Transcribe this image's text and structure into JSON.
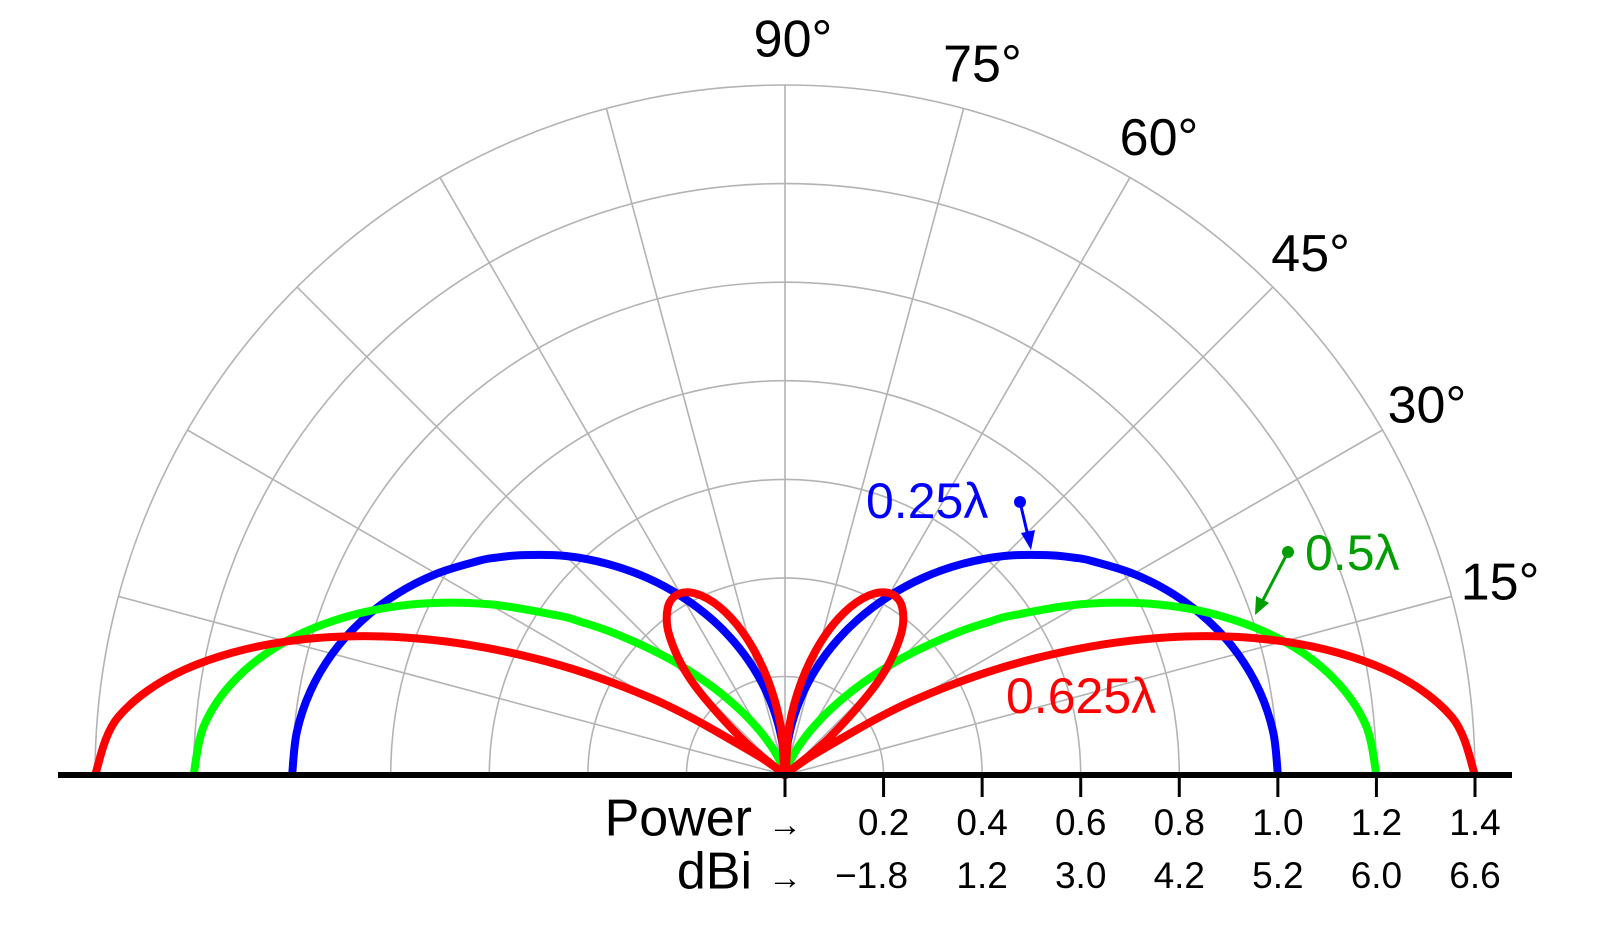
{
  "chart_data": {
    "type": "polar",
    "x": [
      0,
      5,
      10,
      15,
      20,
      25,
      30,
      35,
      36.87,
      40,
      45,
      50,
      55,
      60,
      65,
      70,
      75,
      80,
      85,
      90,
      95,
      100,
      105,
      110,
      115,
      120,
      125,
      130,
      135,
      140,
      143.13,
      145,
      150,
      155,
      160,
      165,
      170,
      175,
      180
    ],
    "series": [
      {
        "name": "0.25λ",
        "color": "#0000ff",
        "label_color": "#0000ff",
        "values": [
          1,
          0.9944,
          0.9779,
          0.9509,
          0.9143,
          0.869,
          0.8165,
          0.7578,
          0.7347,
          0.6941,
          0.6285,
          0.559,
          0.4885,
          0.4174,
          0.3469,
          0.2765,
          0.2066,
          0.1375,
          0.0688,
          0,
          0.0688,
          0.1375,
          0.2066,
          0.2765,
          0.3469,
          0.4174,
          0.4885,
          0.559,
          0.6285,
          0.6941,
          0.7347,
          0.7578,
          0.8165,
          0.869,
          0.9143,
          0.9509,
          0.9779,
          0.9944,
          1
        ]
      },
      {
        "name": "0.5λ",
        "color": "#00ff00",
        "label_color": "#009e00",
        "values": [
          1.2,
          1.1822,
          1.1301,
          1.0481,
          0.9423,
          0.8214,
          0.6928,
          0.5647,
          0.5182,
          0.4434,
          0.3346,
          0.2406,
          0.1653,
          0.106,
          0.061,
          0.0311,
          0.0108,
          0.0039,
          0.0005,
          0,
          0.0005,
          0.0039,
          0.0108,
          0.0311,
          0.061,
          0.106,
          0.1653,
          0.2406,
          0.3346,
          0.4434,
          0.5182,
          0.5647,
          0.6928,
          0.8214,
          0.9423,
          1.0481,
          1.1301,
          1.1822,
          1.2
        ]
      },
      {
        "name": "0.625λ",
        "color": "#ff0000",
        "label_color": "#ff0000",
        "values": [
          1.4,
          1.3576,
          1.2354,
          1.0472,
          0.8143,
          0.5596,
          0.3072,
          0.0774,
          0,
          0.1162,
          0.2644,
          0.3623,
          0.4147,
          0.4256,
          0.4017,
          0.3505,
          0.2786,
          0.1926,
          0.1001,
          0,
          0.1001,
          0.1926,
          0.2786,
          0.3505,
          0.4017,
          0.4256,
          0.4147,
          0.3623,
          0.2644,
          0.1162,
          0,
          0.0774,
          0.3072,
          0.5596,
          0.8143,
          1.0472,
          1.2354,
          1.3576,
          1.4
        ]
      }
    ],
    "rlim": [
      0,
      1.4
    ],
    "rticks": [
      0.2,
      0.4,
      0.6,
      0.8,
      {
        "value": 1,
        "label": "1.0"
      },
      1.2,
      1.4
    ],
    "rticks2": [
      {
        "value": 0.2,
        "label": "−1.8"
      },
      {
        "value": 0.4,
        "label": "1.2"
      },
      {
        "value": 0.6,
        "label": "3.0"
      },
      {
        "value": 0.8,
        "label": "4.2"
      },
      {
        "value": 1,
        "label": "5.2"
      },
      {
        "value": 1.2,
        "label": "6.0"
      },
      {
        "value": 1.4,
        "label": "6.6"
      }
    ],
    "r_label": "Power",
    "r2_label": "dBi",
    "r_arrow": "→",
    "thetagrid": [
      0,
      15,
      30,
      45,
      60,
      75,
      90,
      105,
      120,
      135,
      150,
      165,
      180
    ],
    "thetaticks": [
      {
        "value": 15,
        "label": "15°"
      },
      {
        "value": 30,
        "label": "30°"
      },
      {
        "value": 45,
        "label": "45°"
      },
      {
        "value": 60,
        "label": "60°"
      },
      {
        "value": 75,
        "label": "75°"
      },
      {
        "value": 90,
        "label": "90°"
      }
    ],
    "grid": true
  }
}
